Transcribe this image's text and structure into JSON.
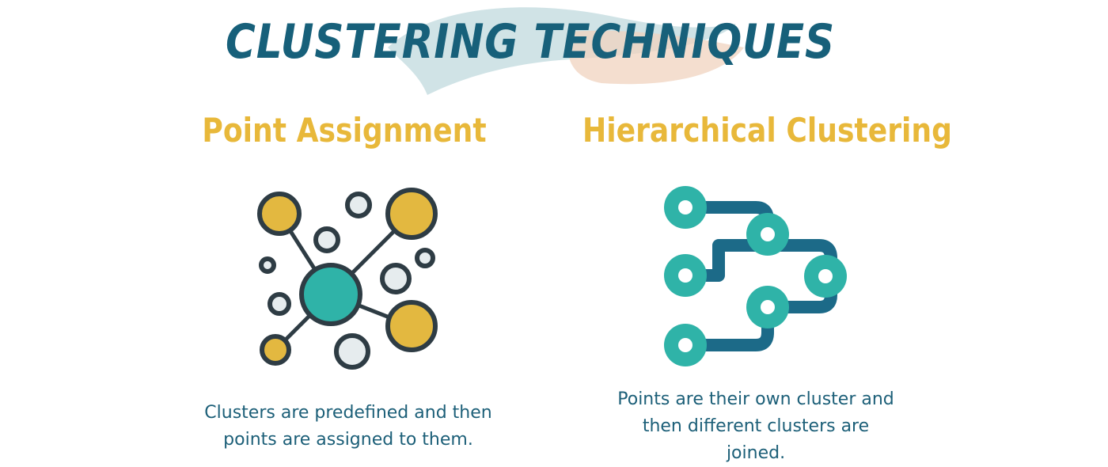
{
  "title": "CLUSTERING TECHNIQUES",
  "colors": {
    "title": "#17607a",
    "heading": "#e8b83a",
    "text": "#1c5f78",
    "teal": "#2fb3a8",
    "dark_teal": "#1c6a88",
    "yellow": "#e3b840",
    "outline": "#2e3c44",
    "light_grey": "#e6ecee",
    "brush_blue": "#bcd7db",
    "brush_peach": "#f0d3bf"
  },
  "techniques": [
    {
      "heading": "Point Assignment",
      "icon": "cluster-network-icon",
      "description_lines": [
        "Clusters are predefined and then",
        "points are assigned to them."
      ]
    },
    {
      "heading": "Hierarchical Clustering",
      "icon": "hierarchy-flow-icon",
      "description_lines": [
        "Points are their own cluster and",
        "then different clusters are",
        "joined."
      ]
    }
  ]
}
